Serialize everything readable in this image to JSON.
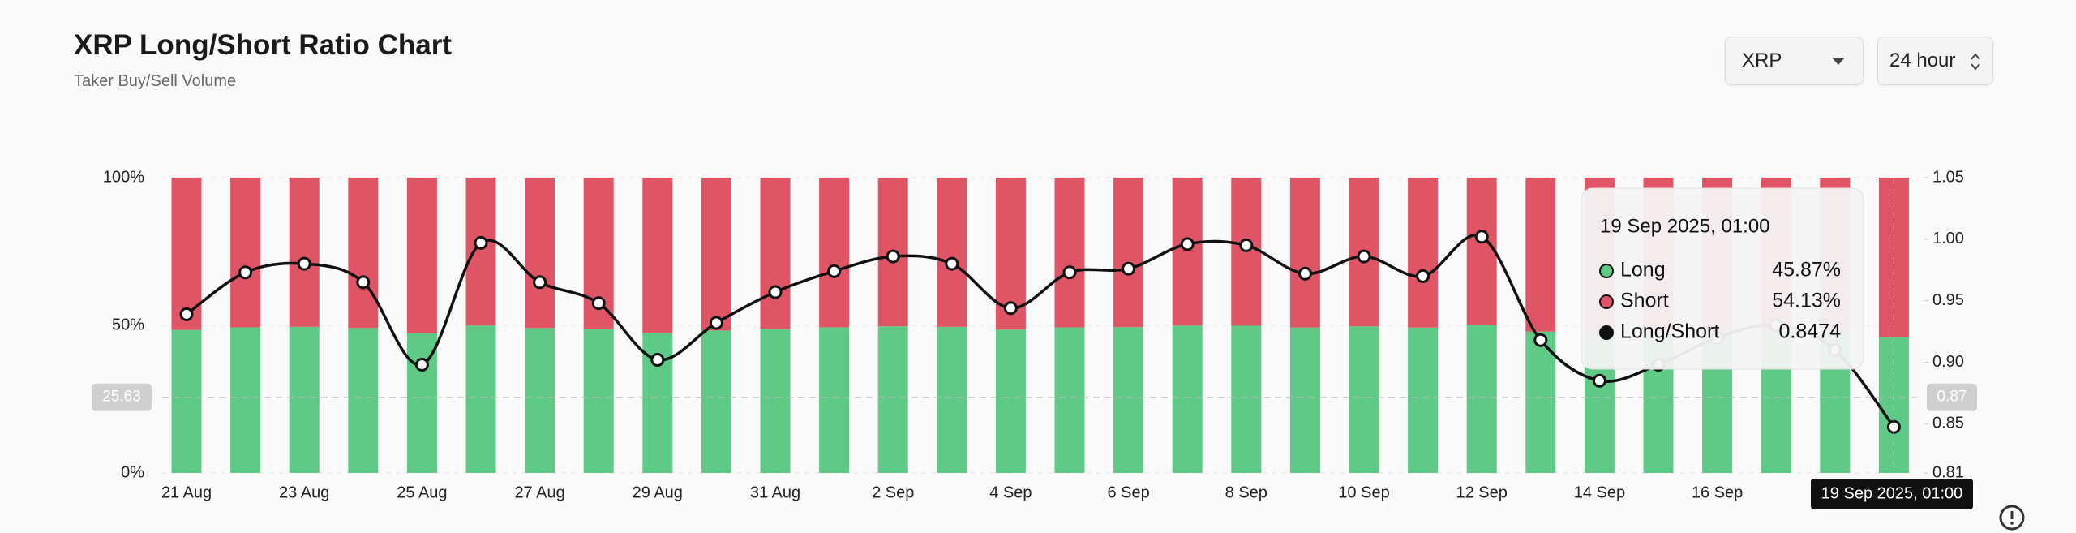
{
  "header": {
    "title": "XRP Long/Short Ratio Chart",
    "subtitle": "Taker Buy/Sell Volume"
  },
  "controls": {
    "symbol": "XRP",
    "interval": "24 hour"
  },
  "chart_data": {
    "type": "bar",
    "categories": [
      "21 Aug",
      null,
      "23 Aug",
      null,
      "25 Aug",
      null,
      "27 Aug",
      null,
      "29 Aug",
      null,
      "31 Aug",
      null,
      "2 Sep",
      null,
      "4 Sep",
      null,
      "6 Sep",
      null,
      "8 Sep",
      null,
      "10 Sep",
      null,
      "12 Sep",
      null,
      "14 Sep",
      null,
      "16 Sep",
      null,
      null,
      null
    ],
    "series": [
      {
        "name": "Long",
        "color": "#5fc986",
        "values": [
          48.43,
          49.32,
          49.49,
          49.11,
          47.31,
          49.92,
          49.11,
          48.67,
          47.42,
          48.24,
          48.9,
          49.34,
          49.65,
          49.49,
          48.56,
          49.32,
          49.39,
          49.9,
          49.87,
          49.29,
          49.65,
          49.24,
          50.05,
          47.86,
          46.95,
          47.31,
          47.92,
          48.19,
          47.64,
          45.87
        ]
      },
      {
        "name": "Short",
        "color": "#e05565",
        "values": [
          51.57,
          50.68,
          50.51,
          50.89,
          52.69,
          50.08,
          50.89,
          51.33,
          52.58,
          51.76,
          51.1,
          50.66,
          50.35,
          50.51,
          51.44,
          50.68,
          50.61,
          50.1,
          50.13,
          50.71,
          50.35,
          50.76,
          49.95,
          52.14,
          53.05,
          52.69,
          52.08,
          51.81,
          52.36,
          54.13
        ]
      },
      {
        "name": "Long/Short",
        "color": "#111111",
        "axis": "y2",
        "values": [
          0.939,
          0.973,
          0.98,
          0.965,
          0.898,
          0.997,
          0.965,
          0.948,
          0.902,
          0.932,
          0.957,
          0.974,
          0.986,
          0.98,
          0.944,
          0.973,
          0.976,
          0.996,
          0.995,
          0.972,
          0.986,
          0.97,
          1.002,
          0.918,
          0.885,
          0.898,
          0.92,
          0.93,
          0.91,
          0.8474
        ]
      }
    ],
    "ylim": [
      0,
      100
    ],
    "yticks": [
      {
        "value": 0,
        "label": "0%"
      },
      {
        "value": 50,
        "label": "50%"
      },
      {
        "value": 100,
        "label": "100%"
      }
    ],
    "y2lim": [
      0.81,
      1.05
    ],
    "y2ticks": [
      0.81,
      0.85,
      {
        "value": 0.9,
        "label": "0.90"
      },
      0.95,
      {
        "value": 1,
        "label": "1.00"
      },
      1.05
    ],
    "grid": true,
    "crosshair": {
      "value": 25.63,
      "left_label": "25.63",
      "right_label": "0.87",
      "x_label": "19 Sep 2025, 01:00"
    },
    "tooltip": {
      "title": "19 Sep 2025, 01:00",
      "rows": [
        {
          "name": "Long",
          "label": "45.87%",
          "color": "#5fc986"
        },
        {
          "name": "Short",
          "label": "54.13%",
          "color": "#e05565"
        },
        {
          "name": "Long/Short",
          "label": "0.8474",
          "color": "#111111"
        }
      ]
    }
  }
}
